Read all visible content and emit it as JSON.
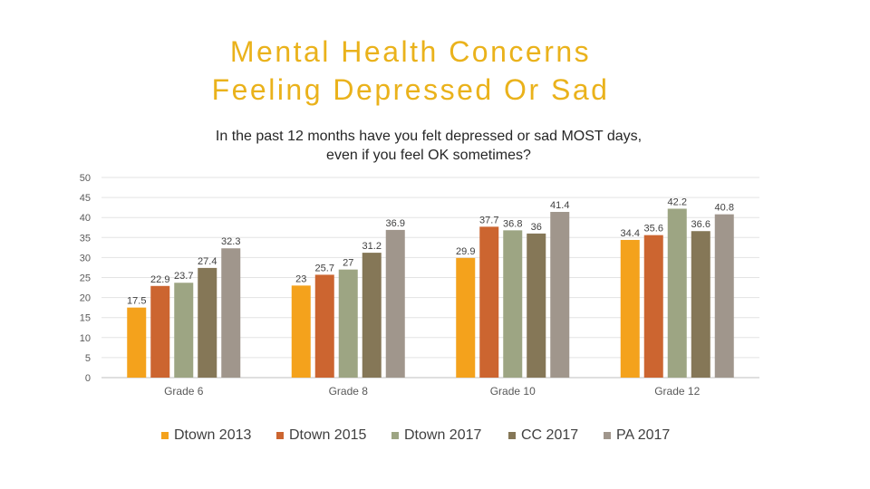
{
  "slide": {
    "title_line1": "Mental Health Concerns",
    "title_line2": "Feeling Depressed Or Sad"
  },
  "chart_data": {
    "type": "bar",
    "title": "In the past 12 months have you felt depressed or sad MOST days, even if you feel OK sometimes?",
    "title_line1": "In the past 12 months have you felt depressed or sad MOST days,",
    "title_line2": "even if you feel OK sometimes?",
    "categories": [
      "Grade 6",
      "Grade 8",
      "Grade 10",
      "Grade 12"
    ],
    "series": [
      {
        "name": "Dtown 2013",
        "color": "#f4a21c",
        "values": [
          17.5,
          23,
          29.9,
          34.4
        ]
      },
      {
        "name": "Dtown 2015",
        "color": "#cc6530",
        "values": [
          22.9,
          25.7,
          37.7,
          35.6
        ]
      },
      {
        "name": "Dtown 2017",
        "color": "#9da583",
        "values": [
          23.7,
          27,
          36.8,
          42.2
        ]
      },
      {
        "name": "CC 2017",
        "color": "#857757",
        "values": [
          27.4,
          31.2,
          36,
          36.6
        ]
      },
      {
        "name": "PA 2017",
        "color": "#a0968c",
        "values": [
          32.3,
          36.9,
          41.4,
          40.8
        ]
      }
    ],
    "ylim": [
      0,
      50
    ],
    "yticks": [
      0,
      5,
      10,
      15,
      20,
      25,
      30,
      35,
      40,
      45,
      50
    ],
    "grid": true,
    "legend": "bottom"
  }
}
